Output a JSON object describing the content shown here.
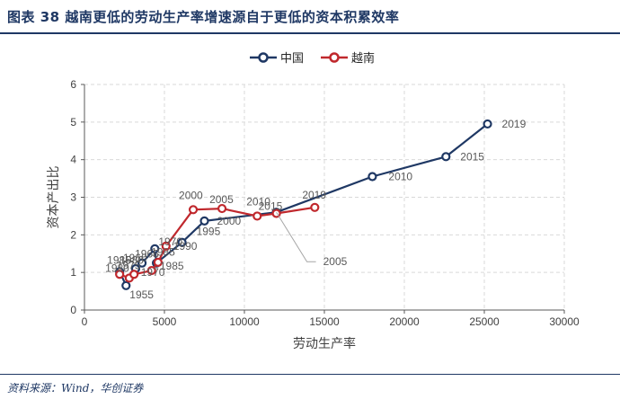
{
  "figure": {
    "title": "图表 38   越南更低的劳动生产率增速源自于更低的资本积累效率",
    "source": "资料来源：Wind，华创证券"
  },
  "colors": {
    "china": "#1f3864",
    "vietnam": "#c0282d",
    "axis": "#595959",
    "grid": "#d9d9d9",
    "leader": "#a6a6a6"
  },
  "chart_data": {
    "type": "scatter",
    "title": "",
    "xlabel": "劳动生产率",
    "ylabel": "资本产出比",
    "xlim": [
      0,
      30000
    ],
    "ylim": [
      0,
      6
    ],
    "xticks": [
      0,
      5000,
      10000,
      15000,
      20000,
      25000,
      30000
    ],
    "xtick_labels": [
      "0",
      "5000",
      "10000",
      "15000",
      "20000",
      "25000",
      "30000"
    ],
    "yticks": [
      0,
      1,
      2,
      3,
      4,
      5,
      6
    ],
    "ytick_labels": [
      "0",
      "1",
      "2",
      "3",
      "4",
      "5",
      "6"
    ],
    "grid": "dashed",
    "legend_position": "top-center",
    "series": [
      {
        "name": "中国",
        "key": "china",
        "points": [
          {
            "x": 2200,
            "y": 1.02,
            "label": "1980"
          },
          {
            "x": 2600,
            "y": 0.65,
            "label": "1955"
          },
          {
            "x": 3200,
            "y": 1.1,
            "label": "1960"
          },
          {
            "x": 3600,
            "y": 1.25,
            "label": "1965"
          },
          {
            "x": 4400,
            "y": 1.63,
            "label": "1970"
          },
          {
            "x": 4500,
            "y": 1.25,
            "label": "1985"
          },
          {
            "x": 6100,
            "y": 1.8,
            "label": "1995"
          },
          {
            "x": 7500,
            "y": 2.37,
            "label": "2000"
          },
          {
            "x": 12000,
            "y": 2.6,
            "label": "2005"
          },
          {
            "x": 18000,
            "y": 3.55,
            "label": "2010"
          },
          {
            "x": 22600,
            "y": 4.08,
            "label": "2015"
          },
          {
            "x": 25200,
            "y": 4.95,
            "label": "2019"
          }
        ]
      },
      {
        "name": "越南",
        "key": "vietnam",
        "points": [
          {
            "x": 2200,
            "y": 0.95,
            "label": "1985"
          },
          {
            "x": 2800,
            "y": 0.85,
            "label": "1975"
          },
          {
            "x": 3100,
            "y": 0.95,
            "label": "1980"
          },
          {
            "x": 4200,
            "y": 1.05,
            "label": "1970"
          },
          {
            "x": 4600,
            "y": 1.27,
            "label": "1985"
          },
          {
            "x": 5100,
            "y": 1.7,
            "label": "1990"
          },
          {
            "x": 6800,
            "y": 2.67,
            "label": "2000"
          },
          {
            "x": 8600,
            "y": 2.7,
            "label": "2005"
          },
          {
            "x": 10800,
            "y": 2.5,
            "label": "2010"
          },
          {
            "x": 12000,
            "y": 2.57,
            "label": "2015"
          },
          {
            "x": 14400,
            "y": 2.73,
            "label": "2019"
          }
        ]
      }
    ]
  }
}
